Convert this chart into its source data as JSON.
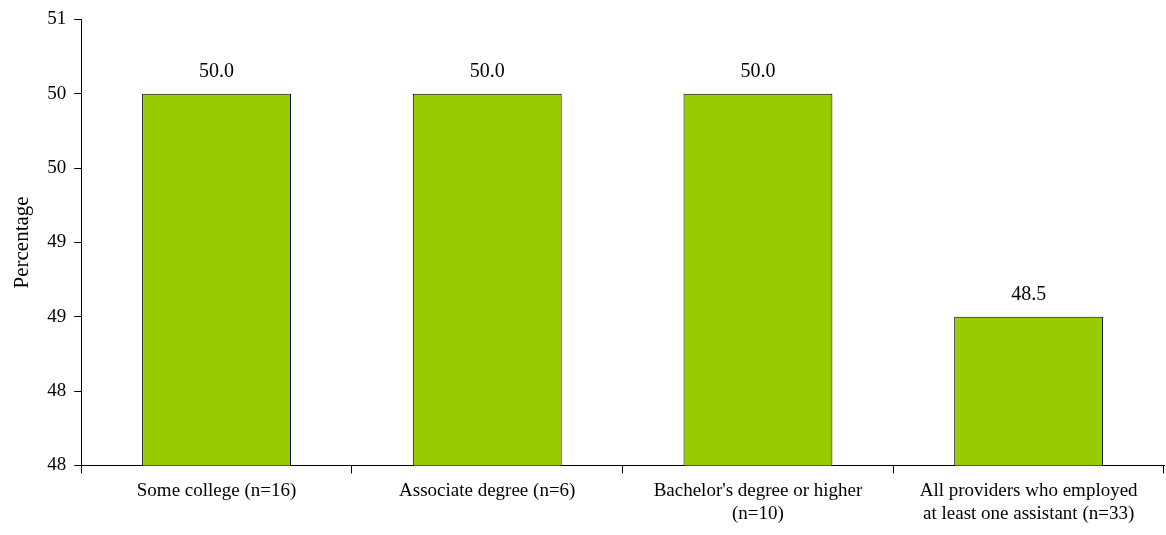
{
  "chart_data": {
    "type": "bar",
    "ylabel": "Percentage",
    "categories": [
      "Some college (n=16)",
      "Associate degree (n=6)",
      "Bachelor's degree or higher (n=10)",
      "All providers who employed at least one assistant (n=33)"
    ],
    "values": [
      50.0,
      50.0,
      50.0,
      48.5
    ],
    "color": "#99cc00",
    "value_labels": [
      "50.0",
      "50.0",
      "50.0",
      "48.5"
    ],
    "ylim": [
      47.5,
      50.5
    ],
    "yticks": [
      {
        "value": 47.5,
        "label": "48"
      },
      {
        "value": 48,
        "label": "48"
      },
      {
        "value": 48.5,
        "label": "49"
      },
      {
        "value": 49,
        "label": "49"
      },
      {
        "value": 49.5,
        "label": "50"
      },
      {
        "value": 50,
        "label": "50"
      },
      {
        "value": 50.5,
        "label": "51"
      }
    ],
    "grid": false,
    "legend": false
  }
}
